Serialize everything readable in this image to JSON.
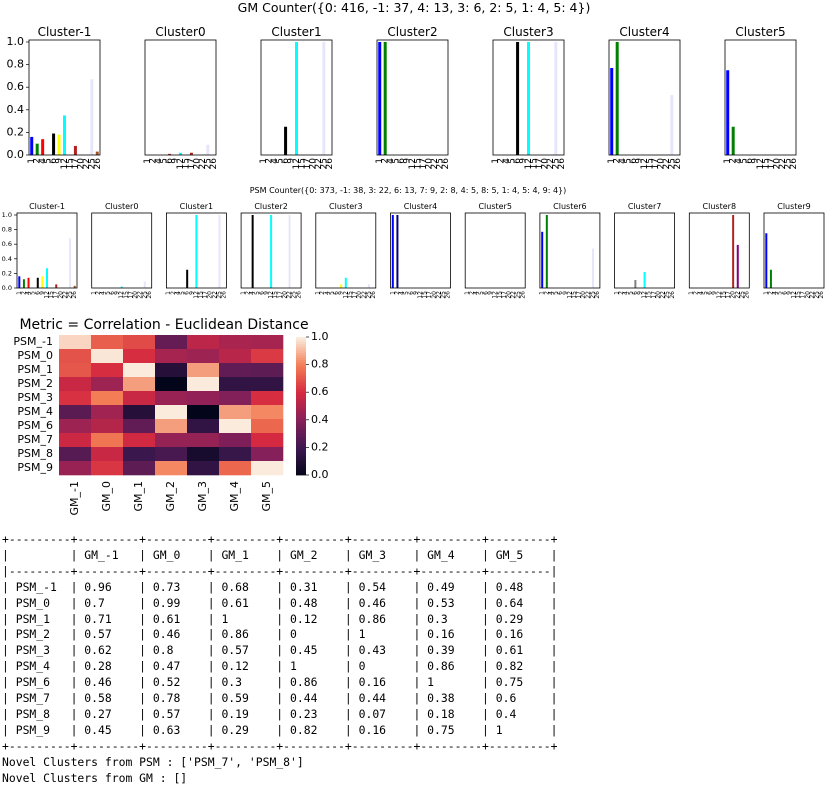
{
  "gm": {
    "counter_title": "GM Counter({0: 416, -1: 37, 4: 13, 3: 6, 2: 5, 1: 4, 5: 4})",
    "ytick_labels": [
      "0.0",
      "0.2",
      "0.4",
      "0.6",
      "0.8",
      "1.0"
    ]
  },
  "psm": {
    "counter_title": "PSM Counter({0: 373, -1: 38, 3: 22, 6: 13, 7: 9, 2: 8, 4: 5, 8: 5, 1: 4, 5: 4, 9: 4})",
    "ytick_labels": [
      "0.0",
      "0.2",
      "0.4",
      "0.6",
      "0.8",
      "1.0"
    ]
  },
  "heatmap": {
    "title": "Metric = Correlation - Euclidean Distance",
    "rows": [
      "PSM_-1",
      "PSM_0",
      "PSM_1",
      "PSM_2",
      "PSM_3",
      "PSM_4",
      "PSM_6",
      "PSM_7",
      "PSM_8",
      "PSM_9"
    ],
    "cols": [
      "GM_-1",
      "GM_0",
      "GM_1",
      "GM_2",
      "GM_3",
      "GM_4",
      "GM_5"
    ],
    "colorbar_ticks": [
      "0.0",
      "0.2",
      "0.4",
      "0.6",
      "0.8",
      "1.0"
    ]
  },
  "chart_data": [
    {
      "type": "bar",
      "title": "GM Counter({0: 416, -1: 37, 4: 13, 3: 6, 2: 5, 1: 4, 5: 4})",
      "ylim": [
        0,
        1.0
      ],
      "x_tick_labels": [
        "1",
        "2",
        "4",
        "5",
        "6",
        "9",
        "12",
        "15",
        "17",
        "20",
        "22",
        "25",
        "26"
      ],
      "panels": [
        {
          "title": "Cluster-1",
          "bars": [
            {
              "x": "1",
              "value": 0.16,
              "color": "#0000ff"
            },
            {
              "x": "2",
              "value": 0.1,
              "color": "#008000"
            },
            {
              "x": "4",
              "value": 0.14,
              "color": "#ff0000"
            },
            {
              "x": "6",
              "value": 0.19,
              "color": "#000000"
            },
            {
              "x": "9",
              "value": 0.18,
              "color": "#ffff00"
            },
            {
              "x": "12",
              "value": 0.35,
              "color": "#00ffff"
            },
            {
              "x": "17",
              "value": 0.08,
              "color": "#b22222"
            },
            {
              "x": "25",
              "value": 0.67,
              "color": "#e6e6fa"
            },
            {
              "x": "26",
              "value": 0.03,
              "color": "#a0522d"
            }
          ]
        },
        {
          "title": "Cluster0",
          "bars": [
            {
              "x": "6",
              "value": 0.01,
              "color": "#b22222"
            },
            {
              "x": "12",
              "value": 0.02,
              "color": "#00ffff"
            },
            {
              "x": "17",
              "value": 0.02,
              "color": "#b22222"
            },
            {
              "x": "25",
              "value": 0.09,
              "color": "#e6e6fa"
            }
          ]
        },
        {
          "title": "Cluster1",
          "bars": [
            {
              "x": "6",
              "value": 0.25,
              "color": "#000000"
            },
            {
              "x": "12",
              "value": 1.0,
              "color": "#00ffff"
            },
            {
              "x": "25",
              "value": 1.0,
              "color": "#e6e6fa"
            }
          ]
        },
        {
          "title": "Cluster2",
          "bars": [
            {
              "x": "1",
              "value": 1.0,
              "color": "#0000ff"
            },
            {
              "x": "2",
              "value": 1.0,
              "color": "#008000"
            }
          ]
        },
        {
          "title": "Cluster3",
          "bars": [
            {
              "x": "6",
              "value": 1.0,
              "color": "#000000"
            },
            {
              "x": "12",
              "value": 1.0,
              "color": "#00ffff"
            },
            {
              "x": "25",
              "value": 1.0,
              "color": "#e6e6fa"
            }
          ]
        },
        {
          "title": "Cluster4",
          "bars": [
            {
              "x": "1",
              "value": 0.77,
              "color": "#0000ff"
            },
            {
              "x": "2",
              "value": 1.0,
              "color": "#008000"
            },
            {
              "x": "25",
              "value": 0.53,
              "color": "#e6e6fa"
            }
          ]
        },
        {
          "title": "Cluster5",
          "bars": [
            {
              "x": "1",
              "value": 0.75,
              "color": "#0000ff"
            },
            {
              "x": "2",
              "value": 0.25,
              "color": "#008000"
            }
          ]
        }
      ]
    },
    {
      "type": "bar",
      "title": "PSM Counter({0: 373, -1: 38, 3: 22, 6: 13, 7: 9, 2: 8, 4: 5, 8: 5, 1: 4, 5: 4, 9: 4})",
      "ylim": [
        0,
        1.0
      ],
      "x_tick_labels": [
        "1",
        "2",
        "4",
        "5",
        "6",
        "9",
        "12",
        "15",
        "17",
        "20",
        "22",
        "25",
        "26"
      ],
      "panels": [
        {
          "title": "Cluster-1",
          "bars": [
            {
              "x": "1",
              "value": 0.16,
              "color": "#0000ff"
            },
            {
              "x": "2",
              "value": 0.12,
              "color": "#008000"
            },
            {
              "x": "4",
              "value": 0.14,
              "color": "#ff0000"
            },
            {
              "x": "6",
              "value": 0.14,
              "color": "#000000"
            },
            {
              "x": "9",
              "value": 0.16,
              "color": "#ffff00"
            },
            {
              "x": "12",
              "value": 0.27,
              "color": "#00ffff"
            },
            {
              "x": "17",
              "value": 0.05,
              "color": "#b22222"
            },
            {
              "x": "25",
              "value": 0.68,
              "color": "#e6e6fa"
            },
            {
              "x": "26",
              "value": 0.03,
              "color": "#a0522d"
            }
          ]
        },
        {
          "title": "Cluster0",
          "bars": [
            {
              "x": "12",
              "value": 0.02,
              "color": "#00ffff"
            },
            {
              "x": "25",
              "value": 0.09,
              "color": "#e6e6fa"
            }
          ]
        },
        {
          "title": "Cluster1",
          "bars": [
            {
              "x": "6",
              "value": 0.25,
              "color": "#000000"
            },
            {
              "x": "12",
              "value": 1.0,
              "color": "#00ffff"
            },
            {
              "x": "25",
              "value": 1.0,
              "color": "#e6e6fa"
            }
          ]
        },
        {
          "title": "Cluster2",
          "bars": [
            {
              "x": "4",
              "value": 1.0,
              "color": "#000000"
            },
            {
              "x": "12",
              "value": 1.0,
              "color": "#00ffff"
            },
            {
              "x": "22",
              "value": 1.0,
              "color": "#e6e6fa"
            }
          ]
        },
        {
          "title": "Cluster3",
          "bars": [
            {
              "x": "9",
              "value": 0.05,
              "color": "#ffff00"
            },
            {
              "x": "12",
              "value": 0.14,
              "color": "#00ffff"
            },
            {
              "x": "25",
              "value": 0.05,
              "color": "#e6e6fa"
            }
          ]
        },
        {
          "title": "Cluster4",
          "bars": [
            {
              "x": "1",
              "value": 1.0,
              "color": "#0000ff"
            },
            {
              "x": "2",
              "value": 1.0,
              "color": "#000080"
            }
          ]
        },
        {
          "title": "Cluster5",
          "bars": []
        },
        {
          "title": "Cluster6",
          "bars": [
            {
              "x": "1",
              "value": 0.77,
              "color": "#0000ff"
            },
            {
              "x": "2",
              "value": 1.0,
              "color": "#008000"
            },
            {
              "x": "25",
              "value": 0.54,
              "color": "#e6e6fa"
            }
          ]
        },
        {
          "title": "Cluster7",
          "bars": [
            {
              "x": "6",
              "value": 0.11,
              "color": "#808080"
            },
            {
              "x": "12",
              "value": 0.22,
              "color": "#00ffff"
            }
          ]
        },
        {
          "title": "Cluster8",
          "bars": [
            {
              "x": "20",
              "value": 1.0,
              "color": "#b22222"
            },
            {
              "x": "22",
              "value": 0.59,
              "color": "#800080"
            }
          ]
        },
        {
          "title": "Cluster9",
          "bars": [
            {
              "x": "1",
              "value": 0.75,
              "color": "#0000ff"
            },
            {
              "x": "2",
              "value": 0.25,
              "color": "#008000"
            }
          ]
        }
      ]
    },
    {
      "type": "heatmap",
      "title": "Metric = Correlation - Euclidean Distance",
      "rows": [
        "PSM_-1",
        "PSM_0",
        "PSM_1",
        "PSM_2",
        "PSM_3",
        "PSM_4",
        "PSM_6",
        "PSM_7",
        "PSM_8",
        "PSM_9"
      ],
      "cols": [
        "GM_-1",
        "GM_0",
        "GM_1",
        "GM_2",
        "GM_3",
        "GM_4",
        "GM_5"
      ],
      "values": [
        [
          0.96,
          0.73,
          0.68,
          0.31,
          0.54,
          0.49,
          0.48
        ],
        [
          0.7,
          0.99,
          0.61,
          0.48,
          0.46,
          0.53,
          0.64
        ],
        [
          0.71,
          0.61,
          1,
          0.12,
          0.86,
          0.3,
          0.29
        ],
        [
          0.57,
          0.46,
          0.86,
          0,
          1,
          0.16,
          0.16
        ],
        [
          0.62,
          0.8,
          0.57,
          0.45,
          0.43,
          0.39,
          0.61
        ],
        [
          0.28,
          0.47,
          0.12,
          1,
          0,
          0.86,
          0.82
        ],
        [
          0.46,
          0.52,
          0.3,
          0.86,
          0.16,
          1,
          0.75
        ],
        [
          0.58,
          0.78,
          0.59,
          0.44,
          0.44,
          0.38,
          0.6
        ],
        [
          0.27,
          0.57,
          0.19,
          0.23,
          0.07,
          0.18,
          0.4
        ],
        [
          0.45,
          0.63,
          0.29,
          0.82,
          0.16,
          0.75,
          1
        ]
      ],
      "colorbar_range": [
        0,
        1.0
      ]
    }
  ],
  "console": {
    "table_border": "+---------+---------+---------+---------+---------+---------+---------+---------+",
    "table_separator": "|---------+---------+---------+---------+---------+---------+---------+---------|",
    "header": [
      "",
      "GM_-1",
      "GM_0",
      "GM_1",
      "GM_2",
      "GM_3",
      "GM_4",
      "GM_5"
    ],
    "rows": [
      [
        "PSM_-1",
        "0.96",
        "0.73",
        "0.68",
        "0.31",
        "0.54",
        "0.49",
        "0.48"
      ],
      [
        "PSM_0",
        "0.7",
        "0.99",
        "0.61",
        "0.48",
        "0.46",
        "0.53",
        "0.64"
      ],
      [
        "PSM_1",
        "0.71",
        "0.61",
        "1",
        "0.12",
        "0.86",
        "0.3",
        "0.29"
      ],
      [
        "PSM_2",
        "0.57",
        "0.46",
        "0.86",
        "0",
        "1",
        "0.16",
        "0.16"
      ],
      [
        "PSM_3",
        "0.62",
        "0.8",
        "0.57",
        "0.45",
        "0.43",
        "0.39",
        "0.61"
      ],
      [
        "PSM_4",
        "0.28",
        "0.47",
        "0.12",
        "1",
        "0",
        "0.86",
        "0.82"
      ],
      [
        "PSM_6",
        "0.46",
        "0.52",
        "0.3",
        "0.86",
        "0.16",
        "1",
        "0.75"
      ],
      [
        "PSM_7",
        "0.58",
        "0.78",
        "0.59",
        "0.44",
        "0.44",
        "0.38",
        "0.6"
      ],
      [
        "PSM_8",
        "0.27",
        "0.57",
        "0.19",
        "0.23",
        "0.07",
        "0.18",
        "0.4"
      ],
      [
        "PSM_9",
        "0.45",
        "0.63",
        "0.29",
        "0.82",
        "0.16",
        "0.75",
        "1"
      ]
    ],
    "novel_psm": "Novel Clusters from PSM : ['PSM_7', 'PSM_8']",
    "novel_gm": "Novel Clusters from GM : []"
  }
}
